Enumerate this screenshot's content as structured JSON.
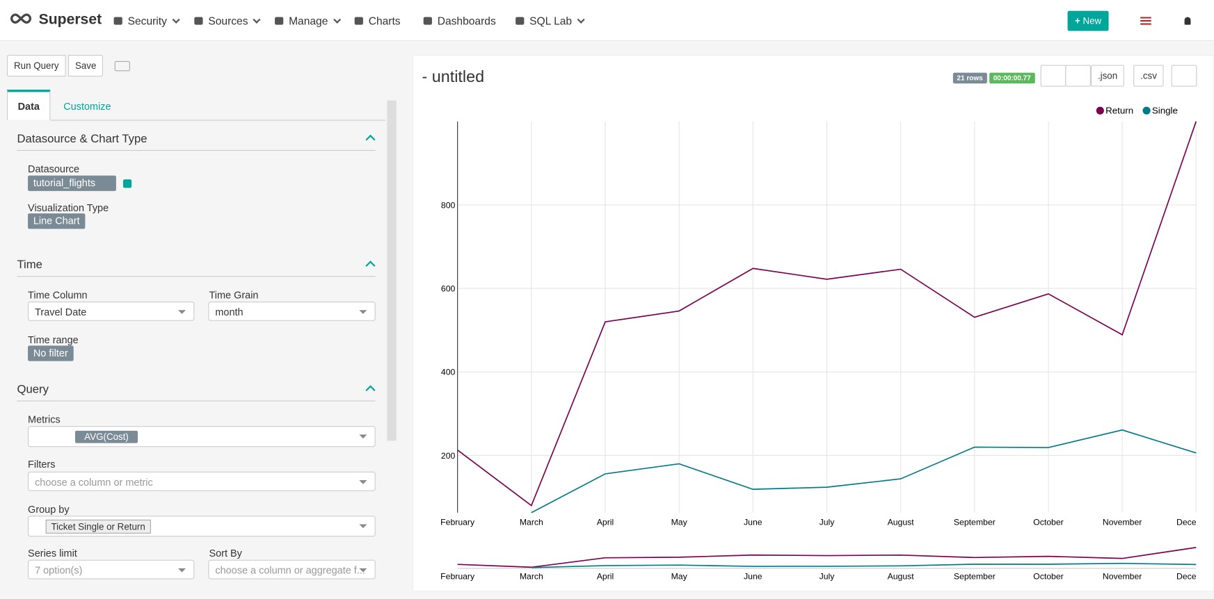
{
  "nav": {
    "brand": "Superset",
    "items": [
      "Security",
      "Sources",
      "Manage",
      "Charts",
      "Dashboards",
      "SQL Lab"
    ],
    "new_button": "New"
  },
  "toolbar": {
    "run_query": "Run Query",
    "save": "Save"
  },
  "tabs": [
    "Data",
    "Customize"
  ],
  "sections": [
    {
      "title": "Datasource & Chart Type",
      "fields": [
        {
          "label": "Datasource",
          "value": "tutorial_flights"
        },
        {
          "label": "Visualization Type",
          "value": "Line Chart"
        }
      ]
    },
    {
      "title": "Time",
      "fields": [
        {
          "label": "Time Column",
          "value": "Travel Date"
        },
        {
          "label": "Time Grain",
          "value": "month"
        },
        {
          "label": "Time range",
          "value": "No filter"
        }
      ]
    },
    {
      "title": "Query",
      "fields": [
        {
          "label": "Metrics",
          "value": "AVG(Cost)"
        },
        {
          "label": "Filters",
          "placeholder": "choose a column or metric"
        },
        {
          "label": "Group by",
          "value": "Ticket Single or Return"
        },
        {
          "label": "Series limit",
          "placeholder": "7 option(s)"
        },
        {
          "label": "Sort By",
          "placeholder": "choose a column or aggregate f..."
        }
      ]
    }
  ],
  "header": {
    "title": "- untitled",
    "row_count": "21 rows",
    "duration": "00:00:00.77",
    "buttons": [
      ".json",
      ".csv"
    ]
  },
  "chart_data": {
    "type": "line",
    "categories": [
      "February",
      "March",
      "April",
      "May",
      "June",
      "July",
      "August",
      "September",
      "October",
      "November",
      "December"
    ],
    "series": [
      {
        "name": "Return",
        "color": "#7b0051",
        "values": [
          213,
          80,
          520,
          546,
          648,
          622,
          646,
          531,
          587,
          489,
          1000
        ]
      },
      {
        "name": "Single",
        "color": "#007a87",
        "values": [
          null,
          63,
          156,
          180,
          119,
          124,
          144,
          220,
          219,
          261,
          206
        ]
      }
    ],
    "ylim": [
      63,
      1000
    ],
    "yticks": [
      200,
      400,
      600,
      800
    ],
    "grid": true,
    "legend": "top-right"
  }
}
